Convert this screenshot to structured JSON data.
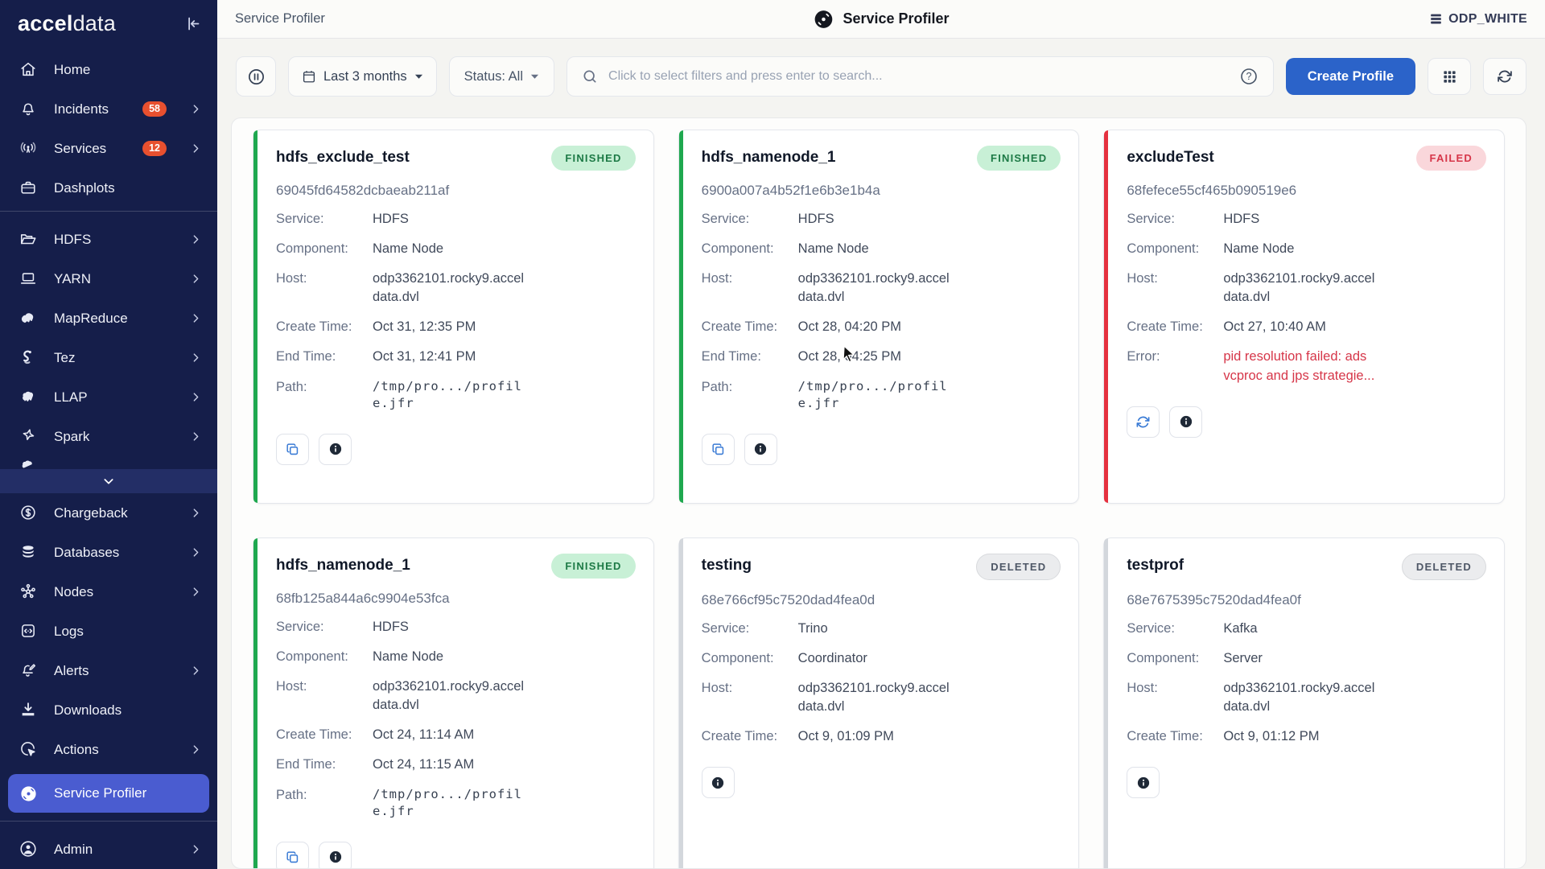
{
  "brand": {
    "bold": "accel",
    "light": "data"
  },
  "colors": {
    "sidebar_bg": "#151e4a",
    "selected_bg": "#4a5cd0",
    "badge_bg": "#e8502f",
    "accent": "#2b63c9",
    "finished_bg": "#c8f0d6",
    "finished_text": "#1d7a46",
    "failed_bg": "#fad7db",
    "failed_text": "#d63649",
    "deleted_bg": "#ebecee",
    "deleted_text": "#4e5766",
    "stripe_finished": "#1fa84f",
    "stripe_failed": "#e5313f",
    "stripe_deleted": "#d3d7dc",
    "error_text": "#d63649"
  },
  "sidebar": {
    "items": [
      {
        "id": "home",
        "label": "Home",
        "icon": "home-icon"
      },
      {
        "id": "incidents",
        "label": "Incidents",
        "icon": "bell-icon",
        "badge": "58",
        "chevron": true
      },
      {
        "id": "services",
        "label": "Services",
        "icon": "broadcast-icon",
        "badge": "12",
        "chevron": true
      },
      {
        "id": "dashplots",
        "label": "Dashplots",
        "icon": "briefcase-icon"
      },
      {
        "type": "divider"
      },
      {
        "id": "hdfs",
        "label": "HDFS",
        "icon": "folder-open-icon",
        "chevron": true
      },
      {
        "id": "yarn",
        "label": "YARN",
        "icon": "laptop-icon",
        "chevron": true
      },
      {
        "id": "mapreduce",
        "label": "MapReduce",
        "icon": "elephant-icon",
        "chevron": true
      },
      {
        "id": "tez",
        "label": "Tez",
        "icon": "seahorse-icon",
        "chevron": true
      },
      {
        "id": "llap",
        "label": "LLAP",
        "icon": "llap-icon",
        "chevron": true
      },
      {
        "id": "spark",
        "label": "Spark",
        "icon": "spark-icon",
        "chevron": true
      },
      {
        "type": "partial",
        "icon": "partial-service-icon"
      },
      {
        "type": "expand",
        "icon": "chevron-down-icon"
      },
      {
        "id": "chargeback",
        "label": "Chargeback",
        "icon": "dollar-circle-icon",
        "chevron": true
      },
      {
        "id": "databases",
        "label": "Databases",
        "icon": "database-icon",
        "chevron": true
      },
      {
        "id": "nodes",
        "label": "Nodes",
        "icon": "nodes-icon",
        "chevron": true
      },
      {
        "id": "logs",
        "label": "Logs",
        "icon": "code-file-icon"
      },
      {
        "id": "alerts",
        "label": "Alerts",
        "icon": "bell-edit-icon",
        "chevron": true
      },
      {
        "id": "downloads",
        "label": "Downloads",
        "icon": "download-icon"
      },
      {
        "id": "actions",
        "label": "Actions",
        "icon": "cursor-click-icon",
        "chevron": true
      },
      {
        "id": "service-profiler",
        "label": "Service Profiler",
        "icon": "disc-icon",
        "selected": true
      },
      {
        "type": "divider2"
      },
      {
        "id": "admin",
        "label": "Admin",
        "icon": "person-circle-icon",
        "chevron": true
      }
    ]
  },
  "header": {
    "breadcrumb": "Service Profiler",
    "title": "Service Profiler",
    "cluster": "ODP_WHITE"
  },
  "toolbar": {
    "time_filter": "Last 3 months",
    "status_filter": "Status: All",
    "search_placeholder": "Click to select filters and press enter to search...",
    "create_label": "Create Profile"
  },
  "cards": [
    {
      "title": "hdfs_exclude_test",
      "status": "FINISHED",
      "status_type": "finished",
      "id": "69045fd64582dcbaeab211af",
      "fields": [
        {
          "label": "Service:",
          "value": "HDFS"
        },
        {
          "label": "Component:",
          "value": "Name Node"
        },
        {
          "label": "Host:",
          "value": "odp3362101.rocky9.accel\ndata.dvl"
        },
        {
          "label": "Create Time:",
          "value": "Oct 31, 12:35 PM"
        },
        {
          "label": "End Time:",
          "value": "Oct 31, 12:41 PM"
        },
        {
          "label": "Path:",
          "value": "/tmp/pro.../profil\ne.jfr",
          "style": "mono"
        }
      ],
      "actions": [
        "copy",
        "info"
      ]
    },
    {
      "title": "hdfs_namenode_1",
      "status": "FINISHED",
      "status_type": "finished",
      "id": "6900a007a4b52f1e6b3e1b4a",
      "fields": [
        {
          "label": "Service:",
          "value": "HDFS"
        },
        {
          "label": "Component:",
          "value": "Name Node"
        },
        {
          "label": "Host:",
          "value": "odp3362101.rocky9.accel\ndata.dvl"
        },
        {
          "label": "Create Time:",
          "value": "Oct 28, 04:20 PM"
        },
        {
          "label": "End Time:",
          "value": "Oct 28, 04:25 PM"
        },
        {
          "label": "Path:",
          "value": "/tmp/pro.../profil\ne.jfr",
          "style": "mono"
        }
      ],
      "actions": [
        "copy",
        "info"
      ]
    },
    {
      "title": "excludeTest",
      "status": "FAILED",
      "status_type": "failed",
      "id": "68fefece55cf465b090519e6",
      "fields": [
        {
          "label": "Service:",
          "value": "HDFS"
        },
        {
          "label": "Component:",
          "value": "Name Node"
        },
        {
          "label": "Host:",
          "value": "odp3362101.rocky9.accel\ndata.dvl"
        },
        {
          "label": "Create Time:",
          "value": "Oct 27, 10:40 AM"
        },
        {
          "label": "Error:",
          "value": "pid resolution failed: ads\nvcproc and jps strategie...",
          "style": "error"
        }
      ],
      "actions": [
        "retry",
        "info"
      ]
    },
    {
      "title": "hdfs_namenode_1",
      "status": "FINISHED",
      "status_type": "finished",
      "id": "68fb125a844a6c9904e53fca",
      "fields": [
        {
          "label": "Service:",
          "value": "HDFS"
        },
        {
          "label": "Component:",
          "value": "Name Node"
        },
        {
          "label": "Host:",
          "value": "odp3362101.rocky9.accel\ndata.dvl"
        },
        {
          "label": "Create Time:",
          "value": "Oct 24, 11:14 AM"
        },
        {
          "label": "End Time:",
          "value": "Oct 24, 11:15 AM"
        },
        {
          "label": "Path:",
          "value": "/tmp/pro.../profil\ne.jfr",
          "style": "mono"
        }
      ],
      "actions": [
        "copy",
        "info"
      ]
    },
    {
      "title": "testing",
      "status": "DELETED",
      "status_type": "deleted",
      "id": "68e766cf95c7520dad4fea0d",
      "fields": [
        {
          "label": "Service:",
          "value": "Trino"
        },
        {
          "label": "Component:",
          "value": "Coordinator"
        },
        {
          "label": "Host:",
          "value": "odp3362101.rocky9.accel\ndata.dvl"
        },
        {
          "label": "Create Time:",
          "value": "Oct 9, 01:09 PM"
        }
      ],
      "actions": [
        "info"
      ]
    },
    {
      "title": "testprof",
      "status": "DELETED",
      "status_type": "deleted",
      "id": "68e7675395c7520dad4fea0f",
      "fields": [
        {
          "label": "Service:",
          "value": "Kafka"
        },
        {
          "label": "Component:",
          "value": "Server"
        },
        {
          "label": "Host:",
          "value": "odp3362101.rocky9.accel\ndata.dvl"
        },
        {
          "label": "Create Time:",
          "value": "Oct 9, 01:12 PM"
        }
      ],
      "actions": [
        "info"
      ]
    }
  ]
}
